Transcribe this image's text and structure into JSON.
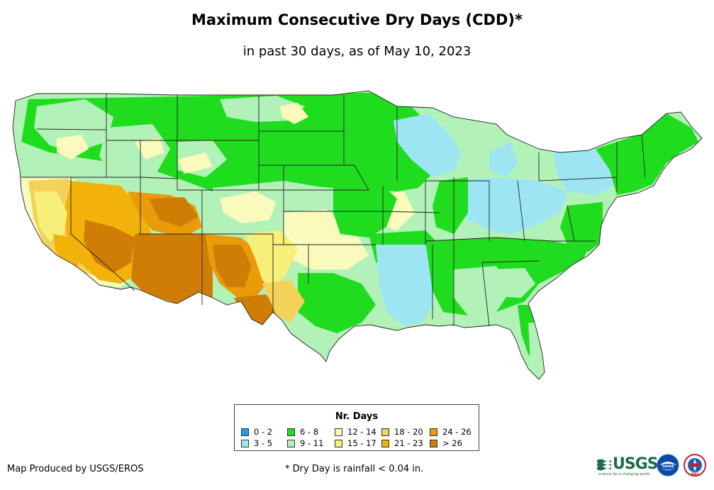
{
  "title": "Maximum Consecutive Dry Days (CDD)*",
  "subtitle": "in past 30 days, as of May 10, 2023",
  "legend": {
    "title": "Nr. Days",
    "items": [
      {
        "label": "0 - 2",
        "color": "#1e9ee8"
      },
      {
        "label": "3 - 5",
        "color": "#9ee5f4"
      },
      {
        "label": "6 - 8",
        "color": "#1fdc1f"
      },
      {
        "label": "9 - 11",
        "color": "#b2f2b8"
      },
      {
        "label": "12 - 14",
        "color": "#fafabc"
      },
      {
        "label": "15 - 17",
        "color": "#f7ef7a"
      },
      {
        "label": "18 - 20",
        "color": "#f3d25a"
      },
      {
        "label": "21 - 23",
        "color": "#f2b20a"
      },
      {
        "label": "24 - 26",
        "color": "#e99b0a"
      },
      {
        "label": "> 26",
        "color": "#cf7d04"
      }
    ]
  },
  "credit": "Map Produced by USGS/EROS",
  "footnote": "* Dry Day is rainfall < 0.04 in.",
  "logos": {
    "usgs": "USGS",
    "usgs_tagline": "science for a changing world",
    "noaa": "noaa",
    "nws": "NWS"
  },
  "colors": {
    "water": "#1e9ee8",
    "low": "#9ee5f4",
    "green": "#1fdc1f",
    "light_green": "#b2f2b8",
    "pale_yellow": "#fafabc",
    "yellow": "#f7ef7a",
    "gold": "#f3d25a",
    "orange": "#f2b20a",
    "dark_orange": "#e99b0a",
    "brown": "#cf7d04"
  }
}
